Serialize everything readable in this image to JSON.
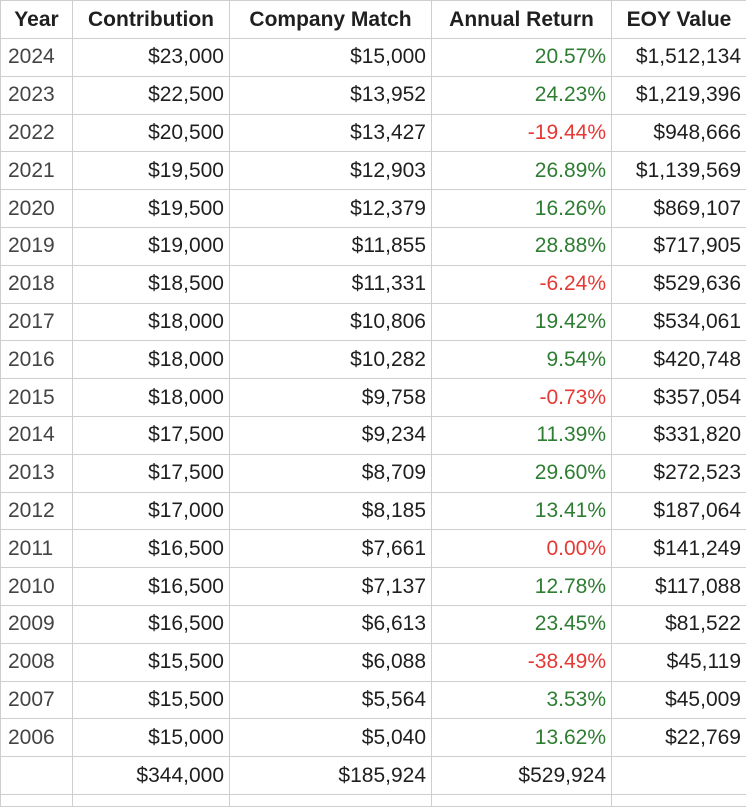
{
  "headers": [
    "Year",
    "Contribution",
    "Company Match",
    "Annual Return",
    "EOY Value"
  ],
  "rows": [
    {
      "year": "2024",
      "contribution": "$23,000",
      "match": "$15,000",
      "return": "20.57%",
      "eoy": "$1,512,134"
    },
    {
      "year": "2023",
      "contribution": "$22,500",
      "match": "$13,952",
      "return": "24.23%",
      "eoy": "$1,219,396"
    },
    {
      "year": "2022",
      "contribution": "$20,500",
      "match": "$13,427",
      "return": "-19.44%",
      "eoy": "$948,666"
    },
    {
      "year": "2021",
      "contribution": "$19,500",
      "match": "$12,903",
      "return": "26.89%",
      "eoy": "$1,139,569"
    },
    {
      "year": "2020",
      "contribution": "$19,500",
      "match": "$12,379",
      "return": "16.26%",
      "eoy": "$869,107"
    },
    {
      "year": "2019",
      "contribution": "$19,000",
      "match": "$11,855",
      "return": "28.88%",
      "eoy": "$717,905"
    },
    {
      "year": "2018",
      "contribution": "$18,500",
      "match": "$11,331",
      "return": "-6.24%",
      "eoy": "$529,636"
    },
    {
      "year": "2017",
      "contribution": "$18,000",
      "match": "$10,806",
      "return": "19.42%",
      "eoy": "$534,061"
    },
    {
      "year": "2016",
      "contribution": "$18,000",
      "match": "$10,282",
      "return": "9.54%",
      "eoy": "$420,748"
    },
    {
      "year": "2015",
      "contribution": "$18,000",
      "match": "$9,758",
      "return": "-0.73%",
      "eoy": "$357,054"
    },
    {
      "year": "2014",
      "contribution": "$17,500",
      "match": "$9,234",
      "return": "11.39%",
      "eoy": "$331,820"
    },
    {
      "year": "2013",
      "contribution": "$17,500",
      "match": "$8,709",
      "return": "29.60%",
      "eoy": "$272,523"
    },
    {
      "year": "2012",
      "contribution": "$17,000",
      "match": "$8,185",
      "return": "13.41%",
      "eoy": "$187,064"
    },
    {
      "year": "2011",
      "contribution": "$16,500",
      "match": "$7,661",
      "return": "0.00%",
      "eoy": "$141,249"
    },
    {
      "year": "2010",
      "contribution": "$16,500",
      "match": "$7,137",
      "return": "12.78%",
      "eoy": "$117,088"
    },
    {
      "year": "2009",
      "contribution": "$16,500",
      "match": "$6,613",
      "return": "23.45%",
      "eoy": "$81,522"
    },
    {
      "year": "2008",
      "contribution": "$15,500",
      "match": "$6,088",
      "return": "-38.49%",
      "eoy": "$45,119"
    },
    {
      "year": "2007",
      "contribution": "$15,500",
      "match": "$5,564",
      "return": "3.53%",
      "eoy": "$45,009"
    },
    {
      "year": "2006",
      "contribution": "$15,000",
      "match": "$5,040",
      "return": "13.62%",
      "eoy": "$22,769"
    }
  ],
  "totals": {
    "year": "",
    "contribution": "$344,000",
    "match": "$185,924",
    "return": "$529,924",
    "eoy": ""
  },
  "colors": {
    "positive": "#2e7d32",
    "negative": "#e53935"
  }
}
